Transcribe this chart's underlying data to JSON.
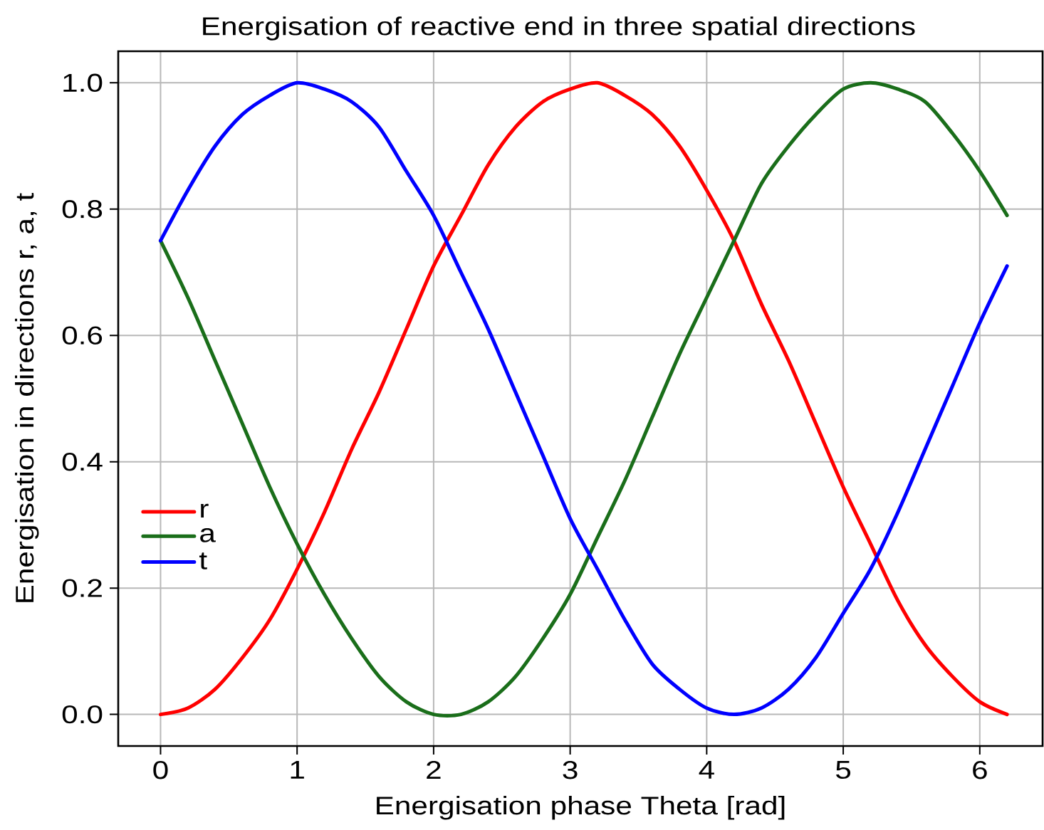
{
  "chart_data": {
    "type": "line",
    "title": "Energisation of reactive end in three spatial directions",
    "xlabel": "Energisation phase Theta [rad]",
    "ylabel": "Energisation in directions r, a, t",
    "x": [
      0,
      0.2,
      0.4,
      0.6,
      0.8,
      1.0,
      1.2,
      1.4,
      1.6,
      1.8,
      2.0,
      2.2,
      2.4,
      2.6,
      2.8,
      3.0,
      3.2,
      3.4,
      3.6,
      3.8,
      4.0,
      4.2,
      4.4,
      4.6,
      4.8,
      5.0,
      5.2,
      5.4,
      5.6,
      5.8,
      6.0,
      6.2
    ],
    "series": [
      {
        "name": "r",
        "color": "#ff0000",
        "values": [
          0,
          0.01,
          0.04,
          0.09,
          0.15,
          0.23,
          0.32,
          0.42,
          0.51,
          0.61,
          0.71,
          0.79,
          0.87,
          0.93,
          0.97,
          0.99,
          1.0,
          0.98,
          0.95,
          0.9,
          0.83,
          0.75,
          0.65,
          0.56,
          0.46,
          0.36,
          0.27,
          0.18,
          0.11,
          0.06,
          0.02,
          0.0
        ]
      },
      {
        "name": "a",
        "color": "#1a6e1a",
        "values": [
          0.75,
          0.66,
          0.56,
          0.46,
          0.36,
          0.27,
          0.19,
          0.12,
          0.06,
          0.02,
          0.0,
          0.0,
          0.02,
          0.06,
          0.12,
          0.19,
          0.28,
          0.37,
          0.47,
          0.57,
          0.66,
          0.75,
          0.84,
          0.9,
          0.95,
          0.99,
          1.0,
          0.99,
          0.97,
          0.92,
          0.86,
          0.79
        ]
      },
      {
        "name": "t",
        "color": "#0000ff",
        "values": [
          0.75,
          0.83,
          0.9,
          0.95,
          0.98,
          1.0,
          0.99,
          0.97,
          0.93,
          0.86,
          0.79,
          0.7,
          0.61,
          0.51,
          0.41,
          0.31,
          0.23,
          0.15,
          0.08,
          0.04,
          0.01,
          0.0,
          0.01,
          0.04,
          0.09,
          0.16,
          0.23,
          0.32,
          0.42,
          0.52,
          0.62,
          0.71
        ]
      }
    ],
    "xlim": [
      -0.31,
      6.46
    ],
    "ylim": [
      -0.05,
      1.05
    ],
    "xticks": [
      0,
      1,
      2,
      3,
      4,
      5,
      6
    ],
    "yticks": [
      {
        "value": 0,
        "label": "0.0"
      },
      0.2,
      0.4,
      0.6,
      0.8,
      {
        "value": 1,
        "label": "1.0"
      }
    ],
    "grid": true,
    "legend": "left",
    "line_style": "solid"
  }
}
